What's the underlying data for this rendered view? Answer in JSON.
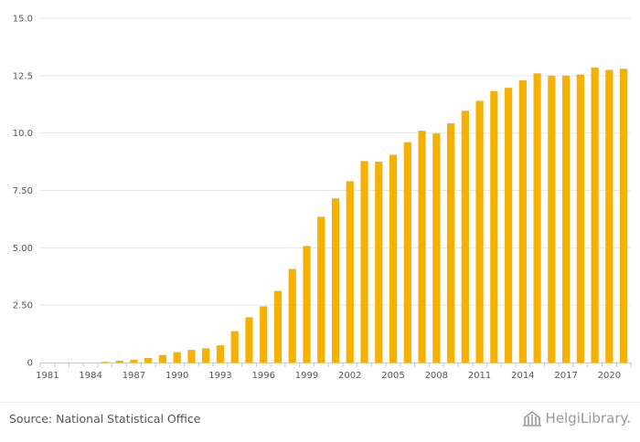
{
  "chart_data": {
    "type": "bar",
    "title": "",
    "xlabel": "",
    "ylabel": "",
    "ylim": [
      0,
      15
    ],
    "yticks": [
      0,
      2.5,
      5,
      7.5,
      10,
      12.5,
      15
    ],
    "ytick_labels": [
      "0",
      "2.50",
      "5.00",
      "7.50",
      "10.0",
      "12.5",
      "15.0"
    ],
    "categories": [
      1981,
      1982,
      1983,
      1984,
      1985,
      1986,
      1987,
      1988,
      1989,
      1990,
      1991,
      1992,
      1993,
      1994,
      1995,
      1996,
      1997,
      1998,
      1999,
      2000,
      2001,
      2002,
      2003,
      2004,
      2005,
      2006,
      2007,
      2008,
      2009,
      2010,
      2011,
      2012,
      2013,
      2014,
      2015,
      2016,
      2017,
      2018,
      2019,
      2020,
      2021
    ],
    "values": [
      0,
      0,
      0,
      0,
      0.03,
      0.08,
      0.12,
      0.2,
      0.33,
      0.45,
      0.55,
      0.62,
      0.75,
      1.37,
      1.97,
      2.45,
      3.12,
      4.08,
      5.08,
      6.35,
      7.15,
      7.9,
      8.78,
      8.75,
      9.05,
      9.6,
      10.1,
      9.98,
      10.42,
      10.97,
      11.4,
      11.83,
      11.97,
      12.3,
      12.6,
      12.5,
      12.5,
      12.55,
      12.85,
      12.75,
      12.8
    ],
    "xtick_labels": [
      "1981",
      "1984",
      "1987",
      "1990",
      "1993",
      "1996",
      "1999",
      "2002",
      "2005",
      "2008",
      "2011",
      "2014",
      "2017",
      "2020"
    ],
    "xtick_years": [
      1981,
      1984,
      1987,
      1990,
      1993,
      1996,
      1999,
      2002,
      2005,
      2008,
      2011,
      2014,
      2017,
      2020
    ],
    "bar_color": "#f5b000",
    "grid": true
  },
  "footer": {
    "source": "Source: National Statistical Office",
    "brand": "HelgiLibrary."
  },
  "colors": {
    "grid": "#e6e6e6",
    "axis": "#c8c8c8",
    "text": "#555555",
    "brand": "#9a9a9a"
  }
}
